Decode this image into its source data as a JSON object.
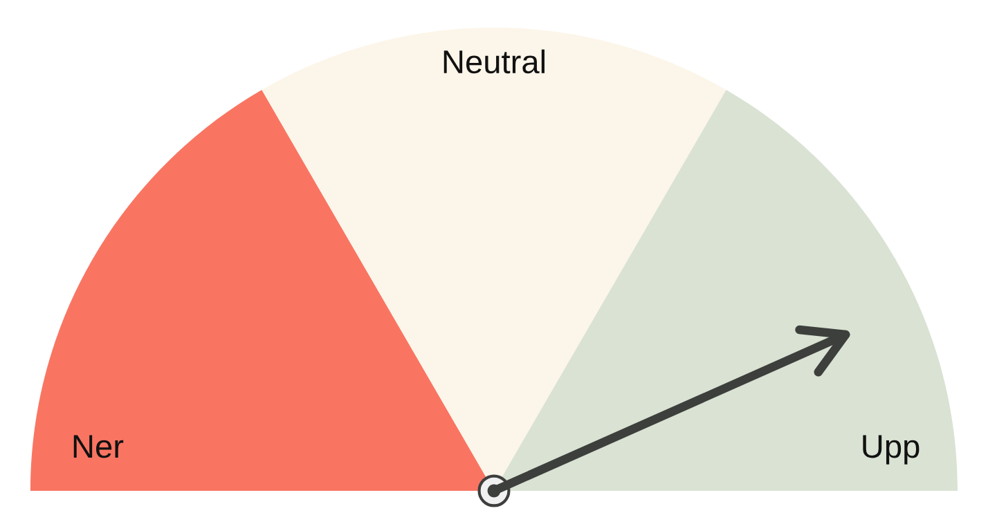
{
  "chart_data": {
    "type": "pie",
    "categories": [
      "Ner",
      "Neutral",
      "Upp"
    ],
    "values": [
      33.3,
      33.4,
      33.3
    ],
    "colors": [
      "#f97562",
      "#fcf5e9",
      "#d9e2d3"
    ],
    "needle": "Upp"
  }
}
